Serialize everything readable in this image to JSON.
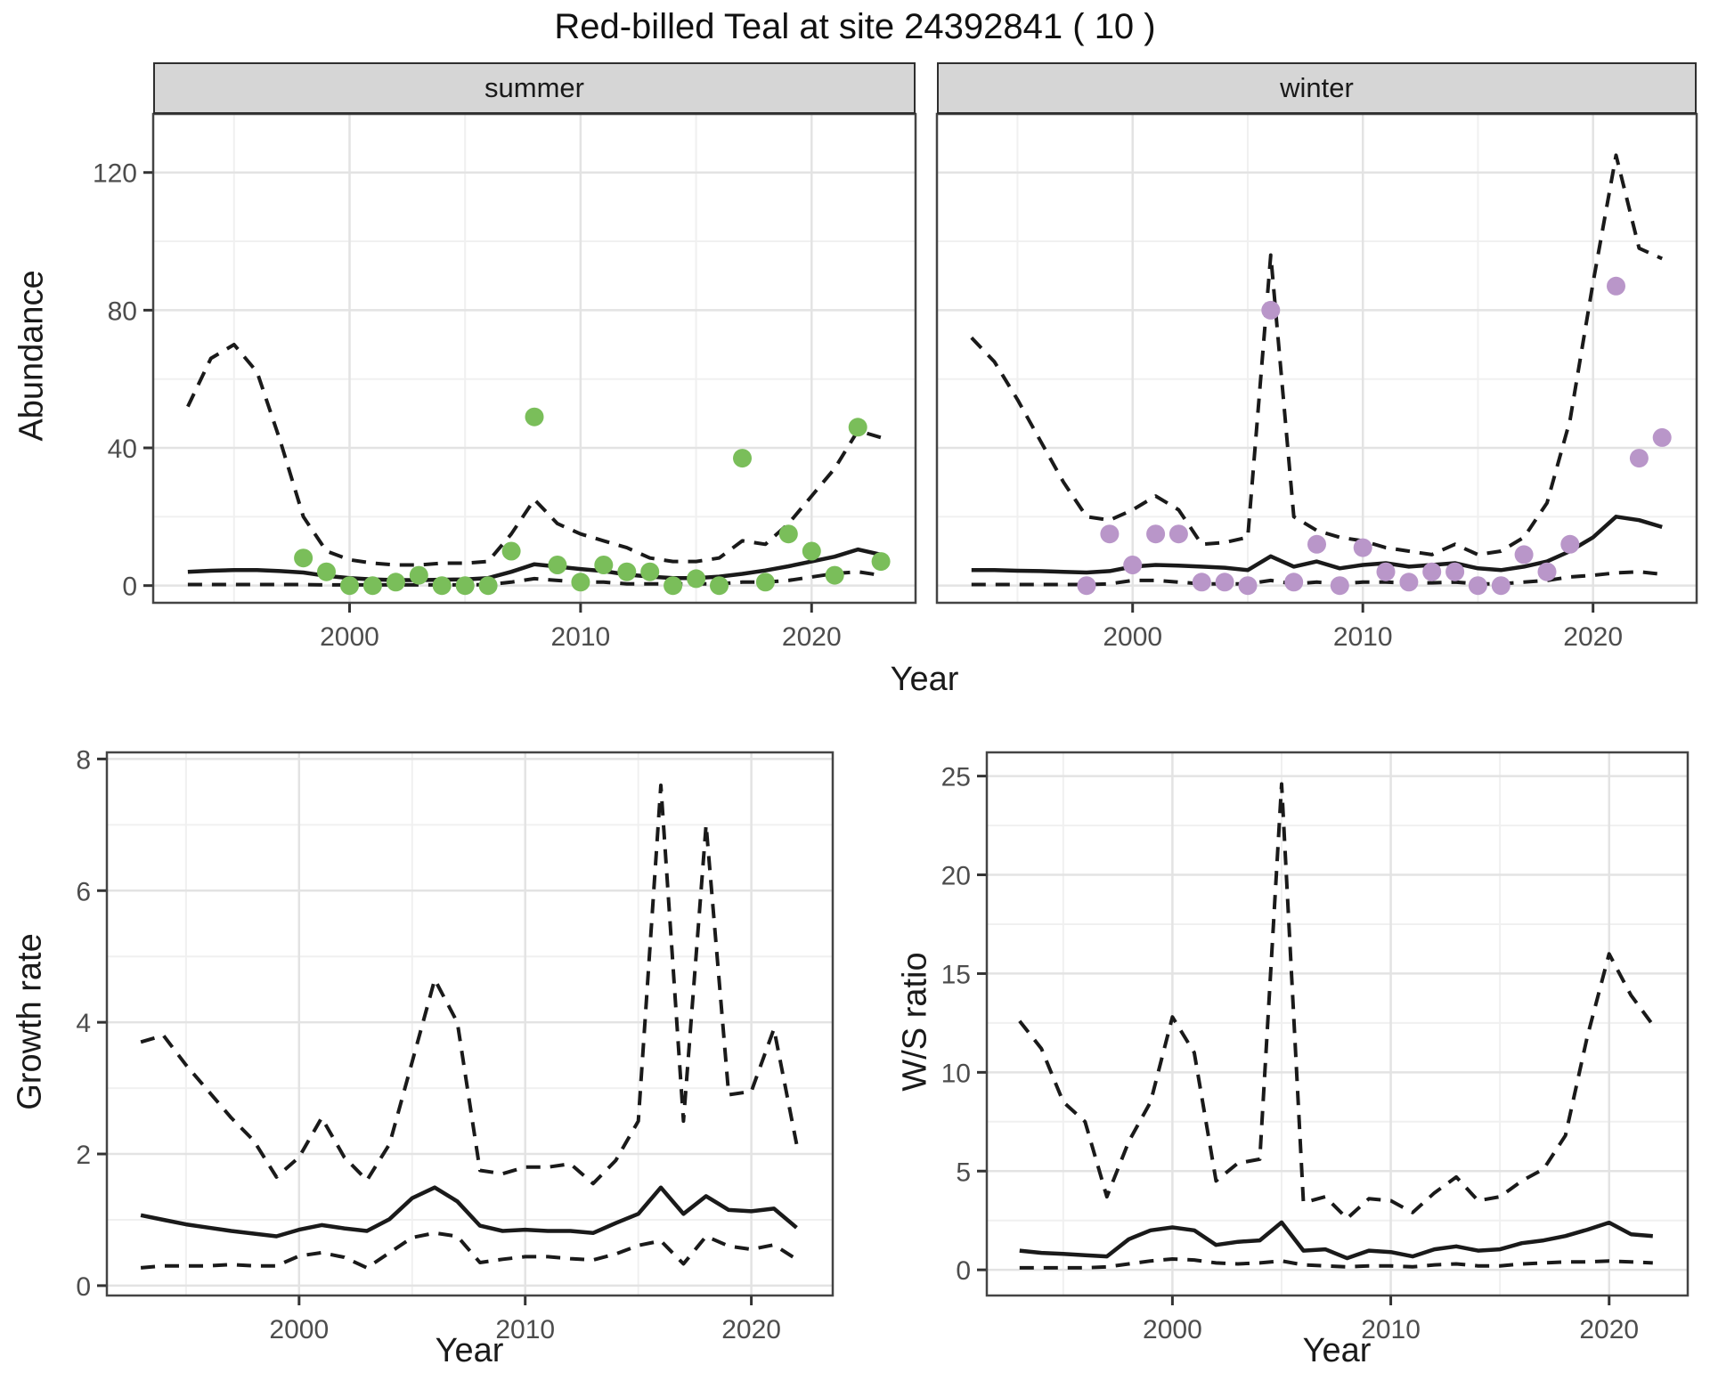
{
  "title": "Red-billed Teal at site 24392841 ( 10 )",
  "axis_titles": {
    "abundance": "Abundance",
    "year": "Year",
    "growth": "Growth rate",
    "ws": "W/S ratio"
  },
  "facet_labels": {
    "summer": "summer",
    "winter": "winter"
  },
  "colors": {
    "summer_point": "#7abe5a",
    "winter_point": "#b996c9",
    "line": "#1a1a1a",
    "grid_major": "#e3e3e3",
    "grid_minor": "#f0f0f0",
    "panel_border": "#444444",
    "strip_bg": "#d6d6d6",
    "tick_label": "#4d4d4d"
  },
  "chart_data": [
    {
      "id": "abundance-summer",
      "type": "line",
      "facet_label": "summer",
      "xlabel": "Year",
      "ylabel": "Abundance",
      "xlim": [
        1991.5,
        2024.5
      ],
      "ylim": [
        -5,
        137
      ],
      "x_ticks": [
        2000,
        2010,
        2020
      ],
      "x_minor": [
        1995,
        2005,
        2015
      ],
      "y_ticks": [
        0,
        40,
        80,
        120
      ],
      "y_minor": [
        20,
        60,
        100
      ],
      "x": [
        1993,
        1994,
        1995,
        1996,
        1997,
        1998,
        1999,
        2000,
        2001,
        2002,
        2003,
        2004,
        2005,
        2006,
        2007,
        2008,
        2009,
        2010,
        2011,
        2012,
        2013,
        2014,
        2015,
        2016,
        2017,
        2018,
        2019,
        2020,
        2021,
        2022,
        2023
      ],
      "series": [
        {
          "name": "upper_ci",
          "style": "dashed",
          "values": [
            52,
            66,
            70,
            62,
            42,
            20,
            10,
            7.5,
            6.5,
            6,
            6,
            6.5,
            6.5,
            7,
            15,
            25,
            18,
            15,
            13,
            11,
            8,
            7,
            7,
            8,
            13,
            12,
            18,
            26,
            34,
            45,
            43
          ]
        },
        {
          "name": "fit",
          "style": "solid",
          "values": [
            4,
            4.3,
            4.5,
            4.5,
            4.2,
            3.8,
            2.8,
            2.2,
            1.8,
            1.6,
            1.6,
            1.7,
            1.8,
            2.2,
            4,
            6.2,
            5.5,
            4.8,
            4.2,
            3.2,
            2.6,
            2.2,
            2.2,
            2.6,
            3.4,
            4.4,
            5.6,
            7,
            8.4,
            10.5,
            9
          ]
        },
        {
          "name": "lower_ci",
          "style": "dashed",
          "values": [
            0.3,
            0.3,
            0.3,
            0.3,
            0.3,
            0.3,
            0.2,
            0.2,
            0.2,
            0.2,
            0.2,
            0.2,
            0.2,
            0.3,
            1,
            2,
            1.5,
            1,
            1,
            0.5,
            0.5,
            0.5,
            0.5,
            0.5,
            1,
            1,
            1.5,
            2.5,
            3.5,
            4,
            3
          ]
        }
      ],
      "points": {
        "name": "observed-counts",
        "color": "#7abe5a",
        "x": [
          1998,
          1999,
          2000,
          2001,
          2002,
          2003,
          2004,
          2005,
          2006,
          2007,
          2008,
          2009,
          2010,
          2011,
          2012,
          2013,
          2014,
          2015,
          2016,
          2017,
          2018,
          2019,
          2020,
          2021,
          2022,
          2023
        ],
        "y": [
          8,
          4,
          0,
          0,
          1,
          3,
          0,
          0,
          0,
          10,
          49,
          6,
          1,
          6,
          4,
          4,
          0,
          2,
          0,
          37,
          1,
          15,
          10,
          3,
          46,
          7
        ]
      }
    },
    {
      "id": "abundance-winter",
      "type": "line",
      "facet_label": "winter",
      "xlabel": "Year",
      "ylabel": "Abundance",
      "xlim": [
        1991.5,
        2024.5
      ],
      "ylim": [
        -5,
        137
      ],
      "x_ticks": [
        2000,
        2010,
        2020
      ],
      "x_minor": [
        1995,
        2005,
        2015
      ],
      "y_ticks": [
        0,
        40,
        80,
        120
      ],
      "y_minor": [
        20,
        60,
        100
      ],
      "x": [
        1993,
        1994,
        1995,
        1996,
        1997,
        1998,
        1999,
        2000,
        2001,
        2002,
        2003,
        2004,
        2005,
        2006,
        2007,
        2008,
        2009,
        2010,
        2011,
        2012,
        2013,
        2014,
        2015,
        2016,
        2017,
        2018,
        2019,
        2020,
        2021,
        2022,
        2023
      ],
      "series": [
        {
          "name": "upper_ci",
          "style": "dashed",
          "values": [
            72,
            65,
            54,
            42,
            30,
            20,
            19,
            22,
            26,
            22,
            12,
            12.5,
            14,
            96,
            20,
            16,
            14,
            13,
            11,
            10,
            9,
            12,
            9,
            10,
            14,
            24,
            48,
            88,
            125,
            98,
            95
          ]
        },
        {
          "name": "fit",
          "style": "solid",
          "values": [
            4.5,
            4.5,
            4.3,
            4.2,
            4,
            3.8,
            4.2,
            5.5,
            6,
            5.8,
            5.5,
            5.2,
            4.5,
            8.5,
            5.5,
            7,
            5,
            6,
            6.5,
            5.5,
            6,
            6.5,
            5,
            4.5,
            5.5,
            7,
            10,
            14,
            20,
            19,
            17
          ]
        },
        {
          "name": "lower_ci",
          "style": "dashed",
          "values": [
            0.3,
            0.3,
            0.3,
            0.3,
            0.3,
            0.3,
            0.5,
            1.5,
            1.5,
            1,
            0.5,
            0.5,
            0.5,
            1.5,
            0.5,
            1,
            0.5,
            1,
            1,
            0.8,
            0.8,
            1,
            0.5,
            0.5,
            1,
            1.5,
            2.5,
            3,
            3.7,
            4,
            3.3
          ]
        }
      ],
      "points": {
        "name": "observed-counts",
        "color": "#b996c9",
        "x": [
          1998,
          1999,
          2000,
          2001,
          2002,
          2003,
          2004,
          2005,
          2006,
          2007,
          2008,
          2009,
          2010,
          2011,
          2012,
          2013,
          2014,
          2015,
          2016,
          2017,
          2018,
          2019,
          2021,
          2022,
          2023
        ],
        "y": [
          0,
          15,
          6,
          15,
          15,
          1,
          1,
          0,
          80,
          1,
          12,
          0,
          11,
          4,
          1,
          4,
          4,
          0,
          0,
          9,
          4,
          12,
          87,
          37,
          43
        ]
      }
    },
    {
      "id": "growth-rate",
      "type": "line",
      "xlabel": "Year",
      "ylabel": "Growth rate",
      "xlim": [
        1991.5,
        2023.6
      ],
      "ylim": [
        -0.15,
        8.1
      ],
      "x_ticks": [
        2000,
        2010,
        2020
      ],
      "x_minor": [
        1995,
        2005,
        2015
      ],
      "y_ticks": [
        0,
        2,
        4,
        6,
        8
      ],
      "y_minor": [
        1,
        3,
        5,
        7
      ],
      "x": [
        1993,
        1994,
        1995,
        1996,
        1997,
        1998,
        1999,
        2000,
        2001,
        2002,
        2003,
        2004,
        2005,
        2006,
        2007,
        2008,
        2009,
        2010,
        2011,
        2012,
        2013,
        2014,
        2015,
        2016,
        2017,
        2018,
        2019,
        2020,
        2021,
        2022
      ],
      "series": [
        {
          "name": "upper_ci",
          "style": "dashed",
          "values": [
            3.7,
            3.8,
            3.35,
            2.95,
            2.55,
            2.2,
            1.65,
            1.95,
            2.55,
            1.95,
            1.6,
            2.15,
            3.4,
            4.65,
            4.0,
            1.75,
            1.7,
            1.8,
            1.8,
            1.85,
            1.55,
            1.9,
            2.5,
            7.6,
            2.5,
            7.0,
            2.9,
            2.95,
            3.9,
            2.15
          ]
        },
        {
          "name": "fit",
          "style": "solid",
          "values": [
            1.07,
            1.0,
            0.93,
            0.88,
            0.83,
            0.79,
            0.75,
            0.85,
            0.92,
            0.87,
            0.83,
            1.01,
            1.33,
            1.49,
            1.28,
            0.91,
            0.83,
            0.85,
            0.83,
            0.83,
            0.8,
            0.95,
            1.09,
            1.49,
            1.09,
            1.36,
            1.15,
            1.13,
            1.17,
            0.88
          ]
        },
        {
          "name": "lower_ci",
          "style": "dashed",
          "values": [
            0.27,
            0.3,
            0.3,
            0.3,
            0.32,
            0.3,
            0.3,
            0.45,
            0.5,
            0.43,
            0.27,
            0.5,
            0.73,
            0.8,
            0.75,
            0.35,
            0.4,
            0.44,
            0.44,
            0.41,
            0.39,
            0.48,
            0.61,
            0.68,
            0.33,
            0.75,
            0.6,
            0.55,
            0.62,
            0.4
          ]
        }
      ]
    },
    {
      "id": "ws-ratio",
      "type": "line",
      "xlabel": "Year",
      "ylabel": "W/S ratio",
      "xlim": [
        1991.5,
        2023.6
      ],
      "ylim": [
        -1.3,
        26.2
      ],
      "x_ticks": [
        2000,
        2010,
        2020
      ],
      "x_minor": [
        1995,
        2005,
        2015
      ],
      "y_ticks": [
        0,
        5,
        10,
        15,
        20,
        25
      ],
      "y_minor": [
        2.5,
        7.5,
        12.5,
        17.5,
        22.5
      ],
      "x": [
        1993,
        1994,
        1995,
        1996,
        1997,
        1998,
        1999,
        2000,
        2001,
        2002,
        2003,
        2004,
        2005,
        2006,
        2007,
        2008,
        2009,
        2010,
        2011,
        2012,
        2013,
        2014,
        2015,
        2016,
        2017,
        2018,
        2019,
        2020,
        2021,
        2022
      ],
      "series": [
        {
          "name": "upper_ci",
          "style": "dashed",
          "values": [
            12.6,
            11.2,
            8.5,
            7.5,
            3.7,
            6.5,
            8.5,
            12.8,
            11.0,
            4.5,
            5.4,
            5.6,
            24.6,
            3.4,
            3.7,
            2.6,
            3.6,
            3.5,
            2.9,
            3.9,
            4.7,
            3.5,
            3.7,
            4.5,
            5.1,
            6.8,
            11.8,
            16.0,
            13.9,
            12.4
          ]
        },
        {
          "name": "fit",
          "style": "solid",
          "values": [
            0.97,
            0.86,
            0.81,
            0.74,
            0.68,
            1.55,
            2.0,
            2.15,
            2.0,
            1.26,
            1.42,
            1.49,
            2.4,
            0.97,
            1.04,
            0.59,
            0.97,
            0.9,
            0.68,
            1.04,
            1.19,
            0.97,
            1.04,
            1.35,
            1.49,
            1.71,
            2.03,
            2.39,
            1.8,
            1.71
          ]
        },
        {
          "name": "lower_ci",
          "style": "dashed",
          "values": [
            0.1,
            0.1,
            0.1,
            0.1,
            0.15,
            0.3,
            0.45,
            0.55,
            0.5,
            0.35,
            0.3,
            0.35,
            0.45,
            0.25,
            0.2,
            0.15,
            0.2,
            0.2,
            0.15,
            0.25,
            0.3,
            0.2,
            0.2,
            0.3,
            0.35,
            0.4,
            0.4,
            0.45,
            0.4,
            0.35
          ]
        }
      ]
    }
  ]
}
